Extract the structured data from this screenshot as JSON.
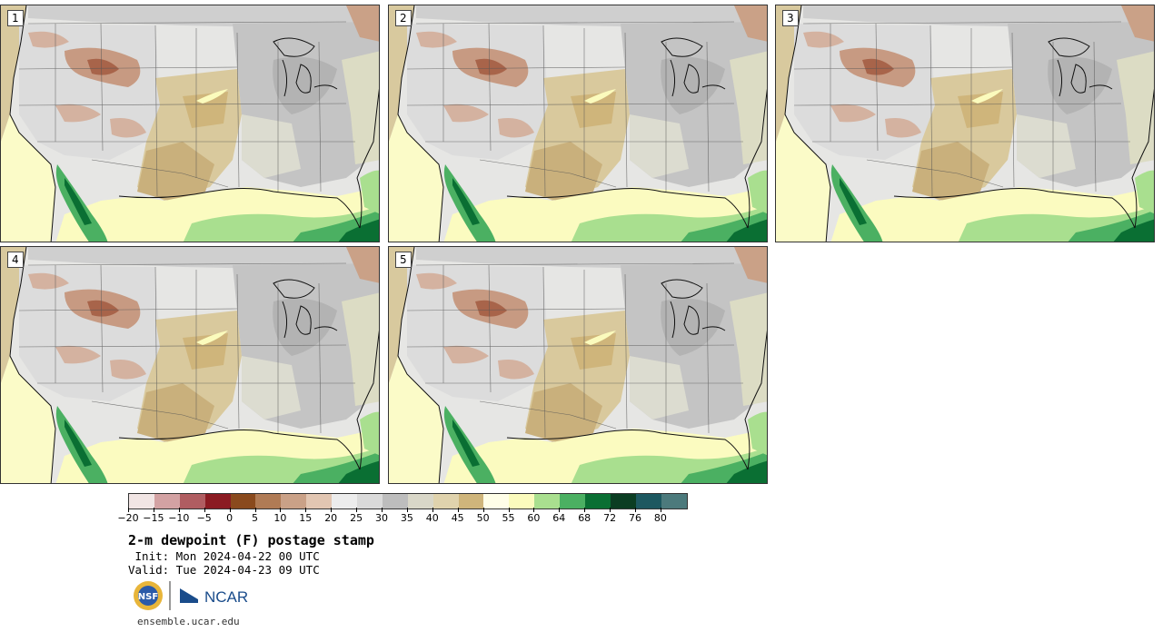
{
  "panels": [
    {
      "label": "1"
    },
    {
      "label": "2"
    },
    {
      "label": "3"
    },
    {
      "label": "4"
    },
    {
      "label": "5"
    }
  ],
  "colorbar": {
    "colors": [
      "#f1e5e4",
      "#d3a2a3",
      "#b05d61",
      "#8b1b22",
      "#8a4a1d",
      "#b07b55",
      "#caa187",
      "#e2c6b2",
      "#ececec",
      "#dadada",
      "#bdbdbd",
      "#d9d7c8",
      "#e0d3ad",
      "#cfb57b",
      "#fffee8",
      "#fbfbbd",
      "#a9df8f",
      "#4bb062",
      "#0a6f33",
      "#0b3d22",
      "#1d5860",
      "#4c7a7c"
    ],
    "tick_labels": [
      "−20",
      "−15",
      "−10",
      "−5",
      "0",
      "5",
      "10",
      "15",
      "20",
      "25",
      "30",
      "35",
      "40",
      "45",
      "50",
      "55",
      "60",
      "64",
      "68",
      "72",
      "76",
      "80"
    ]
  },
  "title": "2-m dewpoint (F) postage stamp",
  "init": " Init: Mon 2024-04-22 00 UTC",
  "valid": "Valid: Tue 2024-04-23 09 UTC",
  "logos": {
    "nsf_text": "NSF",
    "ncar_text": "NCAR"
  },
  "site": "ensemble.ucar.edu"
}
